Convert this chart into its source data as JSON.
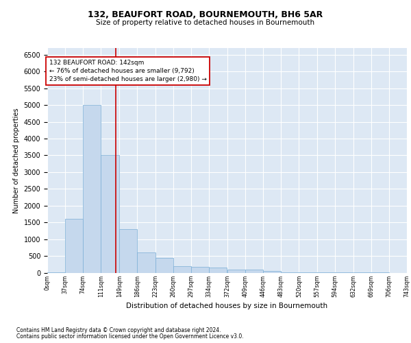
{
  "title1": "132, BEAUFORT ROAD, BOURNEMOUTH, BH6 5AR",
  "title2": "Size of property relative to detached houses in Bournemouth",
  "xlabel": "Distribution of detached houses by size in Bournemouth",
  "ylabel": "Number of detached properties",
  "bar_color": "#c5d8ed",
  "bar_edge_color": "#7aaed6",
  "background_color": "#dde8f4",
  "marker_value": 142,
  "marker_color": "#cc0000",
  "annotation_line1": "132 BEAUFORT ROAD: 142sqm",
  "annotation_line2": "← 76% of detached houses are smaller (9,792)",
  "annotation_line3": "23% of semi-detached houses are larger (2,980) →",
  "annotation_box_color": "#ffffff",
  "annotation_box_edge": "#cc0000",
  "bins": [
    0,
    37,
    74,
    111,
    149,
    186,
    223,
    260,
    297,
    334,
    372,
    409,
    446,
    483,
    520,
    557,
    594,
    632,
    669,
    706,
    743
  ],
  "counts": [
    5,
    1600,
    5000,
    3500,
    1300,
    600,
    450,
    200,
    175,
    150,
    100,
    100,
    50,
    10,
    5,
    3,
    2,
    1,
    1,
    0
  ],
  "ylim": [
    0,
    6700
  ],
  "yticks": [
    0,
    500,
    1000,
    1500,
    2000,
    2500,
    3000,
    3500,
    4000,
    4500,
    5000,
    5500,
    6000,
    6500
  ],
  "footer1": "Contains HM Land Registry data © Crown copyright and database right 2024.",
  "footer2": "Contains public sector information licensed under the Open Government Licence v3.0."
}
